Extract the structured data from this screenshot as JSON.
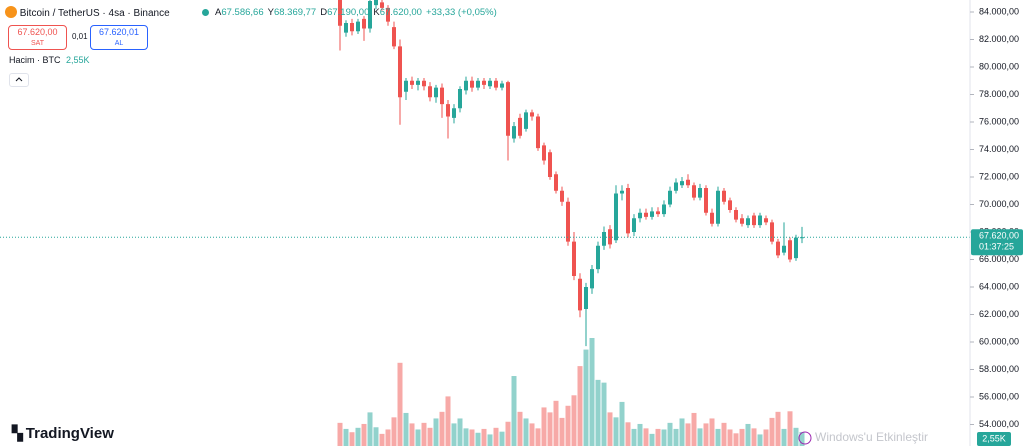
{
  "header": {
    "symbol": "Bitcoin / TetherUS · 4sa · Binance",
    "ohlc": [
      {
        "key": "A",
        "value": "67.586,66"
      },
      {
        "key": "Y",
        "value": "68.369,77"
      },
      {
        "key": "D",
        "value": "67.190,00"
      },
      {
        "key": "K",
        "value": "67.620,00"
      }
    ],
    "change": "+33,33 (+0,05%)",
    "sell": {
      "price": "67.620,00",
      "label": "SAT"
    },
    "spread": "0,01",
    "buy": {
      "price": "67.620,01",
      "label": "AL"
    },
    "volume_title": "Hacim · BTC",
    "volume_value": "2,55K",
    "logo": "TradingView",
    "watermark": "Windows'u Etkinleştir"
  },
  "chart_data": {
    "type": "candlestick",
    "up_color": "#26a69a",
    "down_color": "#ef5350",
    "grid": false,
    "ylim": [
      52436,
      84873
    ],
    "yticks": [
      {
        "value": 84000,
        "label": "84.000,00"
      },
      {
        "value": 82000,
        "label": "82.000,00"
      },
      {
        "value": 80000,
        "label": "80.000,00"
      },
      {
        "value": 78000,
        "label": "78.000,00"
      },
      {
        "value": 76000,
        "label": "76.000,00"
      },
      {
        "value": 74000,
        "label": "74.000,00"
      },
      {
        "value": 72000,
        "label": "72.000,00"
      },
      {
        "value": 70000,
        "label": "70.000,00"
      },
      {
        "value": 68000,
        "label": "68.000,00"
      },
      {
        "value": 66000,
        "label": "66.000,00"
      },
      {
        "value": 64000,
        "label": "64.000,00"
      },
      {
        "value": 62000,
        "label": "62.000,00"
      },
      {
        "value": 60000,
        "label": "60.000,00"
      },
      {
        "value": 58000,
        "label": "58.000,00"
      },
      {
        "value": 56000,
        "label": "56.000,00"
      },
      {
        "value": 54000,
        "label": "54.000,00"
      }
    ],
    "open": [
      84900,
      82500,
      83200,
      82600,
      83500,
      82800,
      84500,
      84700,
      84300,
      82900,
      81500,
      78200,
      79000,
      78700,
      79000,
      78600,
      77800,
      78500,
      77300,
      76300,
      77000,
      78300,
      79000,
      78500,
      79000,
      78600,
      79000,
      78500,
      78900,
      74800,
      76300,
      75500,
      76700,
      76400,
      74300,
      73800,
      72200,
      71000,
      70200,
      67300,
      64600,
      62400,
      63900,
      65300,
      67000,
      68200,
      67400,
      70800,
      71200,
      68000,
      69000,
      69400,
      69100,
      69500,
      69300,
      70000,
      71000,
      71400,
      71800,
      71400,
      70500,
      71200,
      69400,
      68600,
      71000,
      70300,
      69600,
      69000,
      68500,
      69200,
      68500,
      69000,
      68700,
      67300,
      66500,
      67400,
      66100,
      67586.66
    ],
    "high": [
      85000,
      83400,
      83500,
      83500,
      83700,
      85000,
      85000,
      85000,
      84500,
      83300,
      82000,
      79200,
      79300,
      79200,
      79200,
      78900,
      78700,
      78800,
      77600,
      77300,
      78600,
      79300,
      79300,
      79200,
      79200,
      79200,
      79200,
      79000,
      79000,
      76000,
      76600,
      76900,
      76900,
      76600,
      74500,
      74000,
      72400,
      71300,
      70500,
      68000,
      65000,
      64300,
      65600,
      67300,
      68400,
      68500,
      71400,
      71400,
      71500,
      69300,
      69700,
      69700,
      69800,
      69800,
      70300,
      71300,
      71900,
      72000,
      72200,
      71600,
      71500,
      71400,
      69700,
      71300,
      71200,
      70500,
      69800,
      69300,
      69200,
      69400,
      69400,
      69200,
      68900,
      67500,
      68700,
      67600,
      67800,
      68369.77
    ],
    "low": [
      81200,
      82200,
      82300,
      82400,
      81900,
      82500,
      84200,
      84100,
      83000,
      81300,
      75800,
      77600,
      78400,
      78300,
      78300,
      77500,
      77400,
      76300,
      74800,
      75900,
      76700,
      78000,
      78200,
      78300,
      78400,
      78400,
      78300,
      78300,
      73200,
      74500,
      74800,
      75300,
      76100,
      73900,
      72900,
      71800,
      70800,
      69900,
      67000,
      64500,
      61800,
      59700,
      63500,
      65000,
      66700,
      66800,
      67200,
      70300,
      67600,
      67700,
      68700,
      68900,
      68900,
      69100,
      69100,
      69800,
      70800,
      71200,
      71200,
      70300,
      70300,
      69200,
      68400,
      68400,
      70000,
      69400,
      68700,
      68400,
      68300,
      68300,
      68300,
      68500,
      67100,
      66100,
      66300,
      65800,
      65900,
      67190
    ],
    "close": [
      83000,
      83200,
      82600,
      83300,
      82800,
      84800,
      84900,
      84300,
      83300,
      81500,
      77800,
      79000,
      78700,
      79000,
      78600,
      77800,
      78500,
      77300,
      76400,
      77000,
      78400,
      79000,
      78500,
      79000,
      78700,
      79000,
      78500,
      78800,
      75000,
      75700,
      75000,
      76700,
      76400,
      74100,
      73200,
      72000,
      71000,
      70200,
      67300,
      64800,
      62300,
      64000,
      65300,
      67000,
      68000,
      67100,
      70800,
      71000,
      67900,
      69000,
      69400,
      69100,
      69500,
      69300,
      70000,
      71000,
      71600,
      71700,
      71400,
      70500,
      71200,
      69400,
      68600,
      71000,
      70200,
      69600,
      68900,
      68600,
      69000,
      68500,
      69200,
      68700,
      67300,
      66300,
      67000,
      66000,
      67590,
      67620
    ],
    "volume": [
      4.2,
      3.1,
      2.5,
      3.3,
      4.0,
      6.1,
      3.4,
      2.2,
      3.0,
      5.2,
      15.1,
      6.0,
      4.1,
      3.0,
      4.2,
      3.3,
      5.0,
      6.2,
      9.0,
      4.1,
      5.0,
      3.2,
      3.0,
      2.4,
      3.1,
      2.1,
      3.3,
      2.6,
      4.4,
      12.7,
      6.2,
      5.0,
      4.1,
      3.2,
      7.0,
      6.1,
      8.2,
      5.1,
      7.3,
      9.2,
      14.5,
      17.5,
      19.6,
      12.0,
      11.5,
      6.1,
      5.2,
      8.0,
      4.3,
      3.1,
      4.0,
      3.2,
      2.2,
      3.1,
      3.0,
      4.2,
      3.1,
      5.0,
      4.1,
      6.0,
      3.2,
      4.1,
      5.0,
      3.1,
      4.2,
      3.0,
      2.3,
      3.1,
      4.0,
      3.2,
      2.1,
      3.0,
      5.1,
      6.2,
      3.1,
      6.3,
      3.3,
      2.55
    ],
    "last_price_label": "67.620,00",
    "countdown": "01:37:25",
    "volume_label": "2,55K"
  }
}
